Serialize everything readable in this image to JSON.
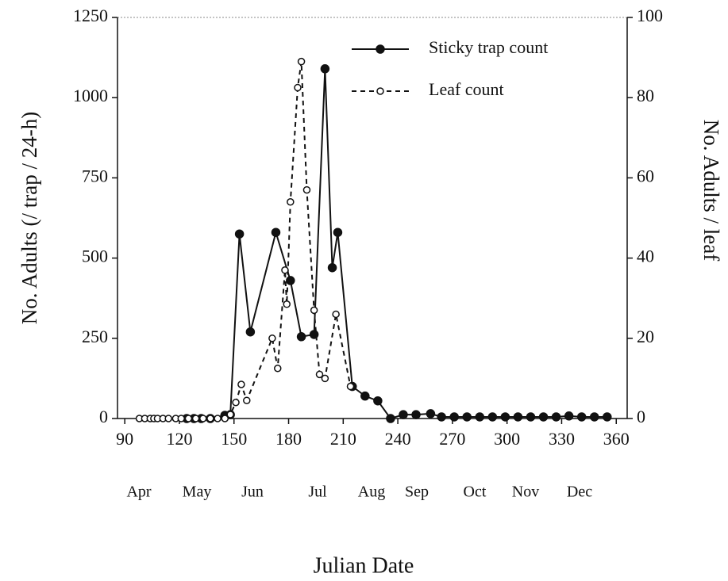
{
  "chart_data": {
    "type": "line",
    "ylabel": "No. Adults (/ trap / 24-h)",
    "y2label": "No. Adults / leaf",
    "xlabel": "Julian Date",
    "month_labels": [
      "Apr",
      "May",
      "Jun",
      "Jul",
      "Aug",
      "Sep",
      "Oct",
      "Nov",
      "Dec"
    ],
    "xlim": [
      86,
      366
    ],
    "xticks": [
      90,
      120,
      150,
      180,
      210,
      240,
      270,
      300,
      330,
      360
    ],
    "ylim": [
      0,
      1250
    ],
    "yticks": [
      0,
      250,
      500,
      750,
      1000,
      1250
    ],
    "y2lim": [
      0,
      100
    ],
    "y2ticks": [
      0,
      20,
      40,
      60,
      80,
      100
    ],
    "legend": "top-right",
    "series": [
      {
        "name": "Sticky trap count",
        "color": "#111111",
        "style": "solid",
        "marker": "filled",
        "x": [
          124,
          128,
          132,
          137,
          145,
          148,
          153,
          159,
          173,
          181,
          187,
          194,
          200,
          204,
          207,
          215,
          222,
          229,
          236,
          243,
          250,
          258,
          264,
          271,
          278,
          285,
          292,
          299,
          306,
          313,
          320,
          327,
          334,
          341,
          348,
          355
        ],
        "values": [
          0,
          0,
          0,
          0,
          10,
          12,
          575,
          270,
          580,
          430,
          255,
          262,
          1090,
          470,
          580,
          100,
          70,
          55,
          0,
          12,
          12,
          15,
          5,
          5,
          5,
          5,
          5,
          5,
          5,
          5,
          5,
          5,
          8,
          5,
          5,
          5
        ]
      },
      {
        "name": "Leaf count",
        "color": "#111111",
        "style": "dashed",
        "marker": "open",
        "axis": "y2",
        "x": [
          98,
          101,
          104,
          106,
          108,
          111,
          114,
          118,
          121,
          125,
          129,
          133,
          137,
          141,
          145,
          148,
          151,
          154,
          157,
          171,
          174,
          178,
          179,
          181,
          185,
          187,
          190,
          194,
          197,
          200,
          206,
          214
        ],
        "values": [
          0,
          0,
          0,
          0,
          0,
          0,
          0,
          0,
          0,
          0,
          0,
          0,
          0,
          0,
          0,
          1,
          4,
          8.5,
          4.5,
          20,
          12.5,
          37,
          28.5,
          54,
          82.5,
          89,
          57,
          27,
          11,
          10,
          26,
          8
        ]
      }
    ]
  }
}
